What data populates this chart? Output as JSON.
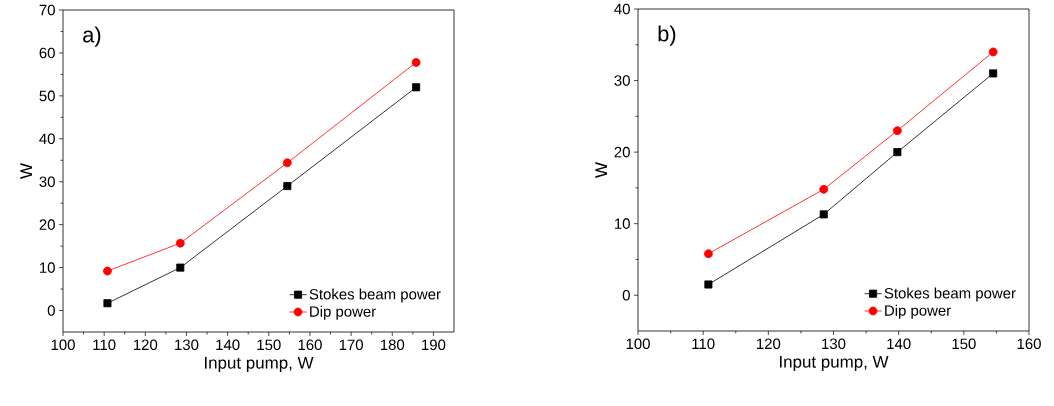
{
  "chart_data": [
    {
      "type": "line",
      "xlabel": "Input pump, W",
      "ylabel": "W",
      "annotations": [
        "a)"
      ],
      "legend": "bottom right",
      "xlim": [
        100,
        195
      ],
      "ylim": [
        -5,
        70
      ],
      "xticks": [
        100,
        110,
        120,
        130,
        140,
        150,
        160,
        170,
        180,
        190
      ],
      "yticks": [
        0,
        10,
        20,
        30,
        40,
        50,
        60,
        70
      ],
      "x": [
        110.8,
        128.5,
        154.5,
        185.8
      ],
      "series": [
        {
          "name": "Stokes beam power",
          "color": "#000000",
          "marker": "square",
          "values": [
            1.7,
            10,
            29,
            52
          ]
        },
        {
          "name": "Dip power",
          "color": "#ff0000",
          "marker": "circle",
          "values": [
            9.2,
            15.7,
            34.4,
            57.8
          ]
        }
      ]
    },
    {
      "type": "line",
      "xlabel": "Input pump, W",
      "ylabel": "W",
      "annotations": [
        "b)"
      ],
      "legend": "bottom right",
      "xlim": [
        100,
        160
      ],
      "ylim": [
        -5,
        40
      ],
      "xticks": [
        100,
        110,
        120,
        130,
        140,
        150,
        160
      ],
      "yticks": [
        0,
        10,
        20,
        30,
        40
      ],
      "x": [
        110.8,
        128.5,
        139.8,
        154.5
      ],
      "series": [
        {
          "name": "Stokes beam power",
          "color": "#000000",
          "marker": "square",
          "values": [
            1.5,
            11.3,
            20,
            31
          ]
        },
        {
          "name": "Dip power",
          "color": "#ff0000",
          "marker": "circle",
          "values": [
            5.8,
            14.8,
            23,
            34
          ]
        }
      ]
    }
  ]
}
